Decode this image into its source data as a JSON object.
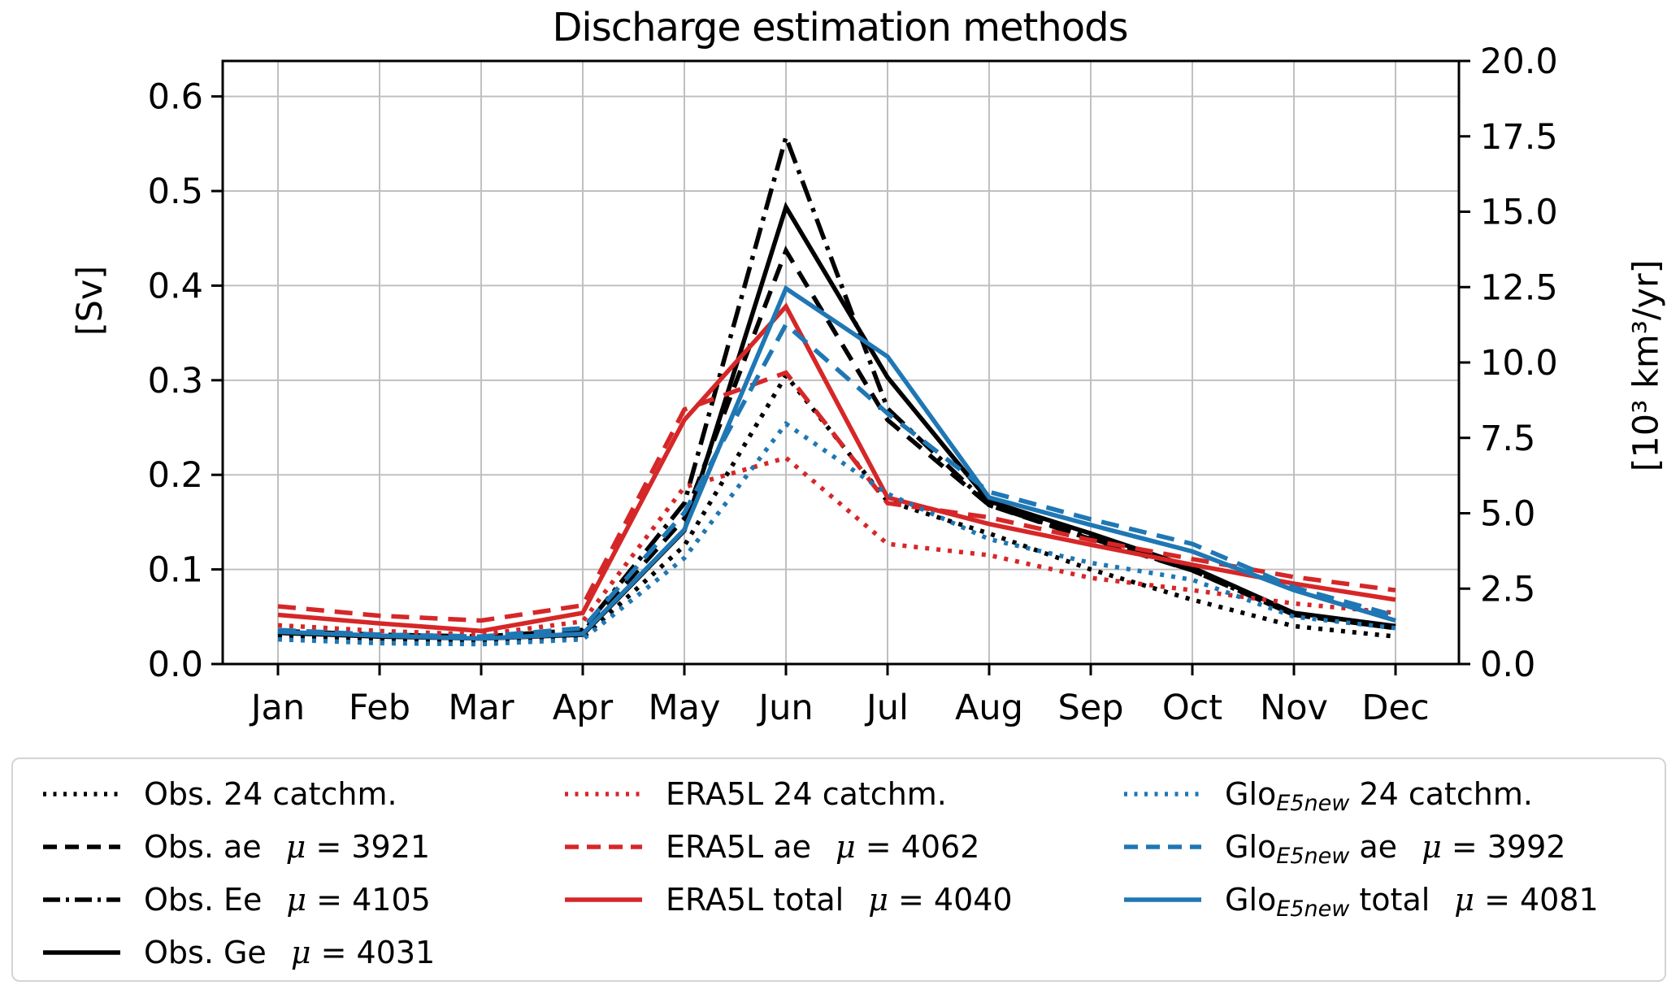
{
  "title": "Discharge estimation methods",
  "colors": {
    "black": "#000000",
    "red": "#d62728",
    "blue": "#1f77b4",
    "grid": "#c0c0c0",
    "spine": "#000000",
    "legend_border": "#d4d4d4"
  },
  "legend": {
    "mu_symbol": "μ",
    "mu_separator": " = ",
    "columns": [
      [
        0,
        1,
        2,
        3
      ],
      [
        4,
        5,
        6
      ],
      [
        7,
        8,
        9
      ]
    ]
  },
  "chart_data": {
    "type": "line",
    "title": "Discharge estimation methods",
    "x_categories": [
      "Jan",
      "Feb",
      "Mar",
      "Apr",
      "May",
      "Jun",
      "Jul",
      "Aug",
      "Sep",
      "Oct",
      "Nov",
      "Dec"
    ],
    "y_left": {
      "label": "[Sv]",
      "tick_labels": [
        "0.0",
        "0.1",
        "0.2",
        "0.3",
        "0.4",
        "0.5",
        "0.6"
      ],
      "min": 0.0,
      "max": 0.6375,
      "grid": true
    },
    "y_right": {
      "label": "[10³ km³/yr]",
      "tick_labels": [
        "0.0",
        "2.5",
        "5.0",
        "7.5",
        "10.0",
        "12.5",
        "15.0",
        "17.5",
        "20.0"
      ],
      "min": 0.0,
      "max": 20.0
    },
    "legend_position": "bottom",
    "series": [
      {
        "key": "obs-24",
        "label_parts": [
          {
            "t": "Obs. 24 catchm."
          }
        ],
        "mu": null,
        "color": "black",
        "linestyle": "dotted",
        "values": [
          0.03,
          0.027,
          0.025,
          0.028,
          0.125,
          0.305,
          0.172,
          0.138,
          0.1,
          0.068,
          0.04,
          0.029
        ]
      },
      {
        "key": "obs-ae",
        "label_parts": [
          {
            "t": "Obs. ae"
          }
        ],
        "mu": "3921",
        "color": "black",
        "linestyle": "dashed",
        "values": [
          0.033,
          0.03,
          0.028,
          0.034,
          0.154,
          0.437,
          0.258,
          0.168,
          0.132,
          0.099,
          0.052,
          0.038
        ]
      },
      {
        "key": "obs-ee",
        "label_parts": [
          {
            "t": "Obs. Ee"
          }
        ],
        "mu": "4105",
        "color": "black",
        "linestyle": "dashdot",
        "values": [
          0.035,
          0.031,
          0.029,
          0.036,
          0.17,
          0.557,
          0.27,
          0.168,
          0.133,
          0.099,
          0.052,
          0.038
        ]
      },
      {
        "key": "obs-ge",
        "label_parts": [
          {
            "t": "Obs. Ge"
          }
        ],
        "mu": "4031",
        "color": "black",
        "linestyle": "solid",
        "values": [
          0.033,
          0.029,
          0.027,
          0.031,
          0.141,
          0.483,
          0.303,
          0.172,
          0.138,
          0.102,
          0.054,
          0.04
        ]
      },
      {
        "key": "era5l-24",
        "label_parts": [
          {
            "t": "ERA5L 24 catchm."
          }
        ],
        "mu": null,
        "color": "red",
        "linestyle": "dotted",
        "values": [
          0.041,
          0.035,
          0.031,
          0.045,
          0.187,
          0.218,
          0.127,
          0.115,
          0.091,
          0.078,
          0.064,
          0.054
        ]
      },
      {
        "key": "era5l-ae",
        "label_parts": [
          {
            "t": "ERA5L ae"
          }
        ],
        "mu": "4062",
        "color": "red",
        "linestyle": "dashed",
        "values": [
          0.061,
          0.051,
          0.046,
          0.062,
          0.269,
          0.308,
          0.17,
          0.155,
          0.131,
          0.111,
          0.092,
          0.078
        ]
      },
      {
        "key": "era5l-total",
        "label_parts": [
          {
            "t": "ERA5L total"
          }
        ],
        "mu": "4040",
        "color": "red",
        "linestyle": "solid",
        "values": [
          0.052,
          0.043,
          0.035,
          0.054,
          0.258,
          0.378,
          0.176,
          0.148,
          0.126,
          0.105,
          0.085,
          0.068
        ]
      },
      {
        "key": "glo-24",
        "label_parts": [
          {
            "t": "Glo"
          },
          {
            "t": "E5new",
            "sub": true
          },
          {
            "t": " 24 catchm."
          }
        ],
        "mu": null,
        "color": "blue",
        "linestyle": "dotted",
        "values": [
          0.026,
          0.022,
          0.021,
          0.026,
          0.112,
          0.254,
          0.18,
          0.132,
          0.107,
          0.089,
          0.05,
          0.038
        ]
      },
      {
        "key": "glo-ae",
        "label_parts": [
          {
            "t": "Glo"
          },
          {
            "t": "E5new",
            "sub": true
          },
          {
            "t": " ae"
          }
        ],
        "mu": "3992",
        "color": "blue",
        "linestyle": "dashed",
        "values": [
          0.036,
          0.031,
          0.029,
          0.038,
          0.16,
          0.359,
          0.265,
          0.182,
          0.153,
          0.127,
          0.081,
          0.051
        ]
      },
      {
        "key": "glo-total",
        "label_parts": [
          {
            "t": "Glo"
          },
          {
            "t": "E5new",
            "sub": true
          },
          {
            "t": " total"
          }
        ],
        "mu": "4081",
        "color": "blue",
        "linestyle": "solid",
        "values": [
          0.034,
          0.03,
          0.027,
          0.032,
          0.142,
          0.397,
          0.325,
          0.176,
          0.147,
          0.119,
          0.078,
          0.046
        ]
      }
    ]
  }
}
